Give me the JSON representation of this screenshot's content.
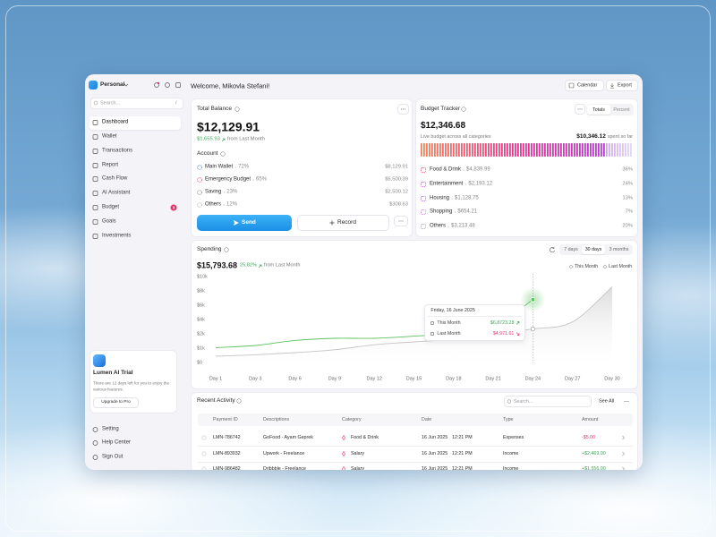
{
  "sidebar": {
    "workspace": "Personal",
    "search": "Search...",
    "shortcut": "/",
    "nav": [
      "Dashboard",
      "Wallet",
      "Transactions",
      "Report",
      "Cash Flow",
      "AI Assistant",
      "Budget",
      "Goals",
      "Investments"
    ],
    "budget_badge": "3",
    "trial": {
      "title": "Lumen AI Trial",
      "text": "There are 12 days left for you to enjoy the various features.",
      "button": "Upgrade to Pro"
    },
    "footer": [
      "Setting",
      "Help Center",
      "Sign Out"
    ]
  },
  "header": {
    "welcome": "Welcome, Mikovla Stefani!",
    "calendar": "Calendar",
    "export": "Export"
  },
  "balance": {
    "title": "Total Balance",
    "amount": "$12,129.91",
    "change": "$1,655.93",
    "change_note": "from Last Month",
    "account_title": "Account",
    "accounts": [
      {
        "name": "Main Wallet",
        "share": "72%",
        "amount": "$8,129.91"
      },
      {
        "name": "Emergency Budget",
        "share": "65%",
        "amount": "$5,500.39"
      },
      {
        "name": "Saving",
        "share": "23%",
        "amount": "$2,500.12"
      },
      {
        "name": "Others",
        "share": "12%",
        "amount": "$308.63"
      }
    ],
    "send": "Send",
    "record": "Record"
  },
  "budget": {
    "title": "Budget Tracker",
    "toggles": [
      "Totals",
      "Percent"
    ],
    "amount": "$12,346.68",
    "note": "Live budget across all categories",
    "spent": "$10,346.12",
    "spent_note": "spent so far",
    "categories": [
      {
        "name": "Food & Drink",
        "amount": "$4,839.99",
        "share": "36%"
      },
      {
        "name": "Entertainment",
        "amount": "$2,193.12",
        "share": "24%"
      },
      {
        "name": "Housing",
        "amount": "$1,128.75",
        "share": "13%"
      },
      {
        "name": "Shopping",
        "amount": "$654.21",
        "share": "7%"
      },
      {
        "name": "Others",
        "amount": "$3,213.48",
        "share": "20%"
      }
    ]
  },
  "chart_data": {
    "type": "line",
    "title": "Spending",
    "total": "$15,793.68",
    "change": "25.82%",
    "change_note": "from Last Month",
    "periods": [
      "7 days",
      "30 days",
      "3 months"
    ],
    "categories": [
      "Day 1",
      "Day 3",
      "Day 6",
      "Day 9",
      "Day 12",
      "Day 15",
      "Day 18",
      "Day 21",
      "Day 24",
      "Day 27",
      "Day 30"
    ],
    "series": [
      {
        "name": "This Month",
        "color": "#5cc25f",
        "values": [
          1100,
          1250,
          1600,
          1750,
          1750,
          1900,
          2200,
          3100,
          6900,
          null,
          null
        ]
      },
      {
        "name": "Last Month",
        "color": "#c4c4c4",
        "fill": true,
        "values": [
          500,
          600,
          750,
          950,
          1300,
          1500,
          1700,
          2100,
          2800,
          3800,
          8700
        ]
      }
    ],
    "ylim": [
      0,
      10000
    ],
    "yticks": [
      {
        "value": 0,
        "label": "$0"
      },
      {
        "value": 1000,
        "label": "$1k"
      },
      {
        "value": 2000,
        "label": "$2k"
      },
      {
        "value": 4000,
        "label": "$4k"
      },
      {
        "value": 6000,
        "label": "$6k"
      },
      {
        "value": 8000,
        "label": "$8k"
      },
      {
        "value": 10000,
        "label": "$10k"
      }
    ],
    "grid": false,
    "tooltip": {
      "date": "Friday, 16 June 2025",
      "this_month": "$6,8723.28",
      "last_month": "$4,971.61"
    }
  },
  "activity": {
    "title": "Recent Activity",
    "search": "Search...",
    "see_all": "See All",
    "columns": [
      "Payment ID",
      "Descriptions",
      "Category",
      "Date",
      "Type",
      "Amount"
    ],
    "rows": [
      [
        "LMN-786742",
        "GoFood - Ayam Geprek",
        "Food & Drink",
        "16 Jun 2025",
        "12:21 PM",
        "Expenses",
        "-$5.00"
      ],
      [
        "LMN-893932",
        "Upwork - Freelance",
        "Salary",
        "16 Jun 2025",
        "12:21 PM",
        "Income",
        "+$2,469.00"
      ],
      [
        "LMN-986482",
        "Dribbble - Freelance",
        "Salary",
        "16 Jun 2025",
        "12:21 PM",
        "Income",
        "+$1,556.00"
      ]
    ]
  }
}
